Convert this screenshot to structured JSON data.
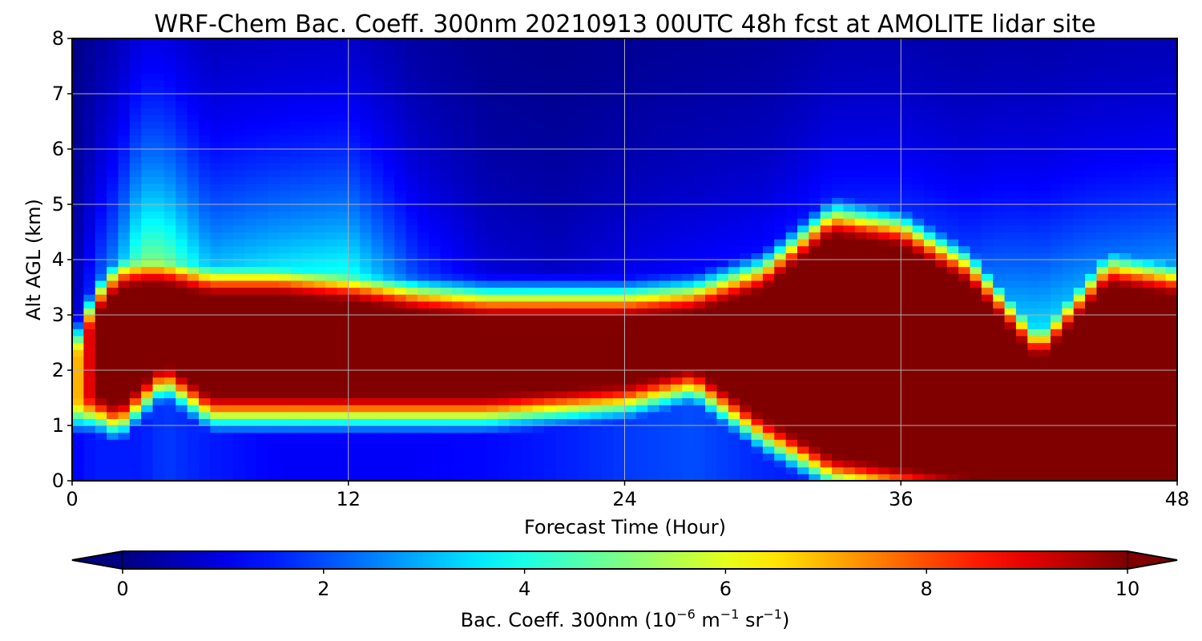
{
  "chart_data": {
    "type": "heatmap",
    "title": "WRF-Chem Bac. Coeff. 300nm  20210913 00UTC 48h fcst at AMOLITE lidar site",
    "xlabel": "Forecast Time (Hour)",
    "ylabel": "Alt AGL (km)",
    "xlim": [
      0,
      48
    ],
    "ylim": [
      0,
      8
    ],
    "xticks": [
      "0",
      "12",
      "24",
      "36",
      "48"
    ],
    "yticks": [
      "0",
      "1",
      "2",
      "3",
      "4",
      "5",
      "6",
      "7",
      "8"
    ],
    "grid": true,
    "colormap": "jet",
    "colorbar": {
      "label_main": "Bac. Coeff. 300nm  (10",
      "label_exp1": "−6",
      "label_mid": " m",
      "label_exp2": "−1",
      "label_mid2": " sr",
      "label_exp3": "−1",
      "label_end": ")",
      "range": [
        0,
        10
      ],
      "ticks": [
        "0",
        "2",
        "4",
        "6",
        "8",
        "10"
      ],
      "extend": "both",
      "orientation": "horizontal"
    },
    "profiles": [
      {
        "hour": 0,
        "base": 1.5,
        "top": 2.0,
        "peak": 6,
        "bg_low": 1.2,
        "bg_high": 0.8
      },
      {
        "hour": 1,
        "base": 1.6,
        "top": 2.9,
        "peak": 10,
        "bg_low": 1.5,
        "bg_high": 2.5
      },
      {
        "hour": 2,
        "base": 1.4,
        "top": 3.4,
        "peak": 10,
        "bg_low": 1.5,
        "bg_high": 3.5
      },
      {
        "hour": 3,
        "base": 1.8,
        "top": 3.5,
        "peak": 10,
        "bg_low": 1.5,
        "bg_high": 6
      },
      {
        "hour": 4,
        "base": 2.2,
        "top": 3.5,
        "peak": 10,
        "bg_low": 1.8,
        "bg_high": 6
      },
      {
        "hour": 6,
        "base": 1.6,
        "top": 3.3,
        "peak": 10,
        "bg_low": 1.5,
        "bg_high": 4
      },
      {
        "hour": 9,
        "base": 1.6,
        "top": 3.3,
        "peak": 10,
        "bg_low": 1.2,
        "bg_high": 4.5
      },
      {
        "hour": 12,
        "base": 1.6,
        "top": 3.2,
        "peak": 10,
        "bg_low": 1.2,
        "bg_high": 5
      },
      {
        "hour": 15,
        "base": 1.6,
        "top": 3.0,
        "peak": 10,
        "bg_low": 1.2,
        "bg_high": 2.5
      },
      {
        "hour": 18,
        "base": 1.6,
        "top": 2.9,
        "peak": 10,
        "bg_low": 1.3,
        "bg_high": 1.3
      },
      {
        "hour": 21,
        "base": 1.7,
        "top": 2.9,
        "peak": 10,
        "bg_low": 1.5,
        "bg_high": 1.0
      },
      {
        "hour": 24,
        "base": 1.8,
        "top": 2.9,
        "peak": 10,
        "bg_low": 1.8,
        "bg_high": 1.5
      },
      {
        "hour": 27,
        "base": 2.1,
        "top": 3.0,
        "peak": 10,
        "bg_low": 2.0,
        "bg_high": 1.8
      },
      {
        "hour": 30,
        "base": 1.2,
        "top": 3.4,
        "peak": 10,
        "bg_low": 1.6,
        "bg_high": 1.8
      },
      {
        "hour": 33,
        "base": 0.5,
        "top": 4.4,
        "peak": 10,
        "bg_low": 1.5,
        "bg_high": 2.0
      },
      {
        "hour": 36,
        "base": 0.3,
        "top": 4.2,
        "peak": 10,
        "bg_low": 1.6,
        "bg_high": 2.2
      },
      {
        "hour": 39,
        "base": 0.1,
        "top": 3.5,
        "peak": 10,
        "bg_low": 1.8,
        "bg_high": 2.4
      },
      {
        "hour": 42,
        "base": 0.0,
        "top": 2.1,
        "peak": 10,
        "bg_low": 7,
        "bg_high": 4.5
      },
      {
        "hour": 45,
        "base": 0.0,
        "top": 3.5,
        "peak": 10,
        "bg_low": 8,
        "bg_high": 3.0
      },
      {
        "hour": 48,
        "base": 0.0,
        "top": 3.3,
        "peak": 10,
        "bg_low": 8,
        "bg_high": 3.5
      }
    ]
  }
}
